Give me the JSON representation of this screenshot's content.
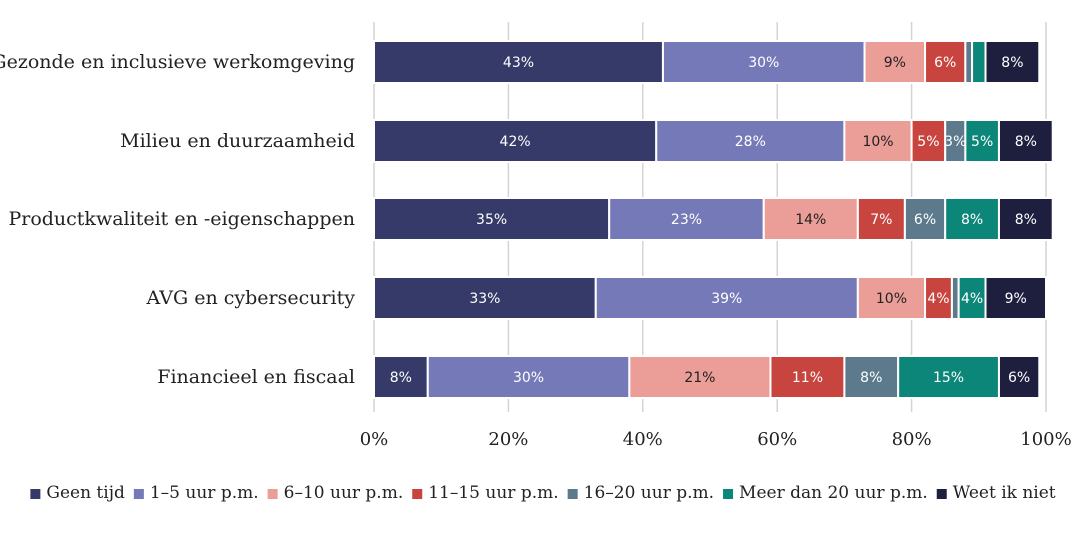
{
  "chart_data": {
    "type": "bar",
    "orientation": "horizontal",
    "stacked": true,
    "categories": [
      "Gezonde en inclusieve werkomgeving",
      "Milieu en duurzaamheid",
      "Productkwaliteit en -eigenschappen",
      "AVG en cybersecurity",
      "Financieel en fiscaal"
    ],
    "series": [
      {
        "name": "Geen tijd",
        "color": "#363a68",
        "label_color": "#ffffff",
        "values": [
          43,
          42,
          35,
          33,
          8
        ]
      },
      {
        "name": "1–5 uur p.m.",
        "color": "#7579b8",
        "label_color": "#ffffff",
        "values": [
          30,
          28,
          23,
          39,
          30
        ]
      },
      {
        "name": "6–10 uur p.m.",
        "color": "#eb9e97",
        "label_color": "#222222",
        "values": [
          9,
          10,
          14,
          10,
          21
        ]
      },
      {
        "name": "11–15 uur p.m.",
        "color": "#c8453f",
        "label_color": "#ffffff",
        "values": [
          6,
          5,
          7,
          4,
          11
        ]
      },
      {
        "name": "16–20 uur p.m.",
        "color": "#5c7a8c",
        "label_color": "#ffffff",
        "values": [
          1,
          3,
          6,
          1,
          8
        ]
      },
      {
        "name": "Meer dan 20 uur p.m.",
        "color": "#0b8678",
        "label_color": "#ffffff",
        "values": [
          2,
          5,
          8,
          4,
          15
        ]
      },
      {
        "name": "Weet ik niet",
        "color": "#1e1f3f",
        "label_color": "#ffffff",
        "values": [
          8,
          8,
          8,
          9,
          6
        ]
      }
    ],
    "xlim": [
      0,
      100
    ],
    "x_ticks": [
      "0%",
      "20%",
      "40%",
      "60%",
      "80%",
      "100%"
    ],
    "grid": true,
    "legend_position": "bottom"
  }
}
